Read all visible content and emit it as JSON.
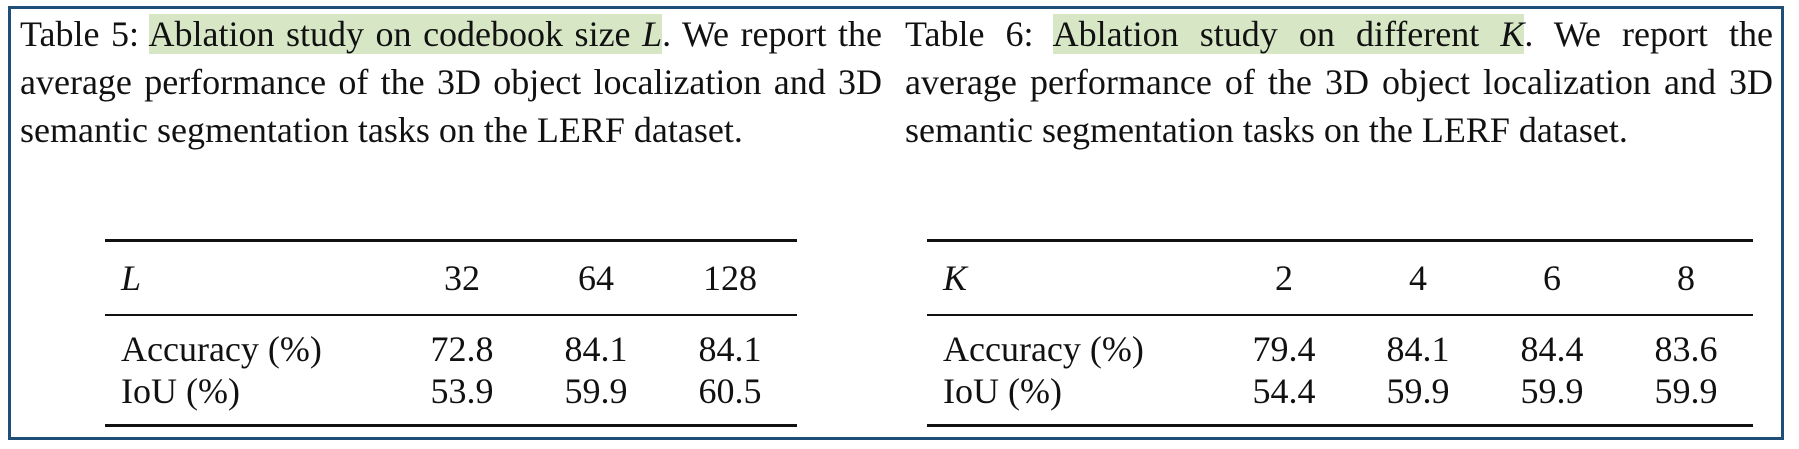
{
  "tables": [
    {
      "caption": {
        "label": "Table 5:",
        "highlight": "Ablation study on codebook size",
        "variable": "L",
        "rest": ". We report the average performance of the 3D object localization and 3D semantic segmentation tasks on the LERF dataset."
      },
      "header": [
        "L",
        "32",
        "64",
        "128"
      ],
      "rows": [
        [
          "Accuracy (%)",
          "72.8",
          "84.1",
          "84.1"
        ],
        [
          "IoU (%)",
          "53.9",
          "59.9",
          "60.5"
        ]
      ]
    },
    {
      "caption": {
        "label": "Table 6:",
        "highlight": "Ablation study on different",
        "variable": "K",
        "rest": ". We report the average performance of the 3D object localization and 3D semantic segmentation tasks on the LERF dataset."
      },
      "header": [
        "K",
        "2",
        "4",
        "6",
        "8"
      ],
      "rows": [
        [
          "Accuracy (%)",
          "79.4",
          "84.1",
          "84.4",
          "83.6"
        ],
        [
          "IoU (%)",
          "54.4",
          "59.9",
          "59.9",
          "59.9"
        ]
      ]
    }
  ]
}
